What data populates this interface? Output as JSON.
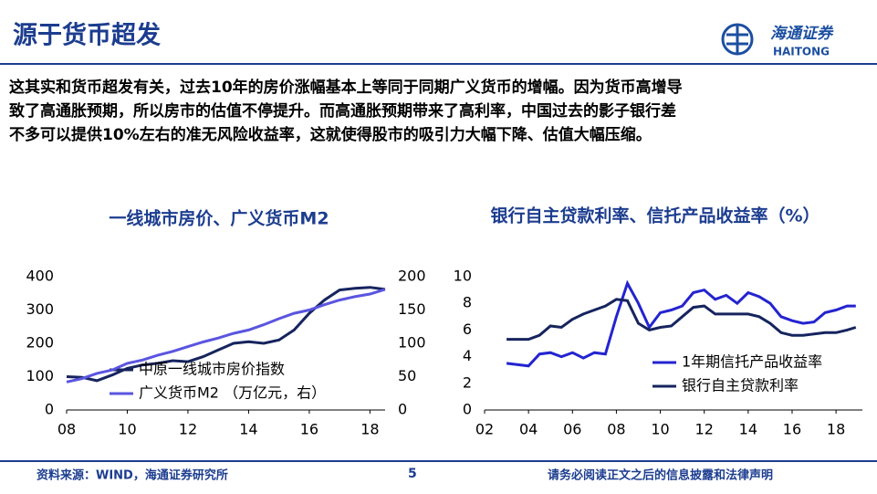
{
  "header": {
    "title": "源于货币超发",
    "logo_text": "海通证券",
    "logo_sub": "HAITONG"
  },
  "body_lines": [
    "这其实和货币超发有关，过去10年的房价涨幅基本上等同于同期广义货币的增幅。因为货币高增导",
    "致了高通胀预期，所以房市的估值不停提升。而高通胀预期带来了高利率，中国过去的影子银行差",
    "不多可以提供10%左右的准无风险收益率，这就使得股市的吸引力大幅下降、估值大幅压缩。"
  ],
  "chart_data": [
    {
      "type": "line",
      "title": "一线城市房价、广义货币M2",
      "x": [
        2008,
        2008.5,
        2009,
        2009.5,
        2010,
        2010.5,
        2011,
        2011.5,
        2012,
        2012.5,
        2013,
        2013.5,
        2014,
        2014.5,
        2015,
        2015.5,
        2016,
        2016.5,
        2017,
        2017.5,
        2018,
        2018.5
      ],
      "xlim": [
        2008,
        2018.5
      ],
      "xticks": [
        {
          "value": 2008,
          "label": "08"
        },
        {
          "value": 2010,
          "label": "10"
        },
        {
          "value": 2012,
          "label": "12"
        },
        {
          "value": 2014,
          "label": "14"
        },
        {
          "value": 2016,
          "label": "16"
        },
        {
          "value": 2018,
          "label": "18"
        }
      ],
      "ylim": [
        0,
        400
      ],
      "yticks": [
        0,
        100,
        200,
        300,
        400
      ],
      "y2lim": [
        0,
        200
      ],
      "y2ticks": [
        0,
        50,
        100,
        150,
        200
      ],
      "series": [
        {
          "name": "中原一线城市房价指数",
          "color": "#16245e",
          "values": [
            100,
            98,
            88,
            105,
            125,
            135,
            140,
            148,
            145,
            160,
            180,
            200,
            205,
            200,
            210,
            240,
            290,
            330,
            360,
            365,
            368,
            362
          ]
        },
        {
          "name": "广义货币M2 （万亿元，右）",
          "color": "#5a55e0",
          "axis": "y2",
          "values": [
            42,
            47,
            55,
            60,
            70,
            75,
            82,
            88,
            95,
            102,
            108,
            115,
            120,
            128,
            137,
            145,
            150,
            158,
            165,
            170,
            174,
            181
          ]
        }
      ]
    },
    {
      "type": "line",
      "title": "银行自主贷款利率、信托产品收益率（%）",
      "x": [
        2003,
        2004,
        2004.5,
        2005,
        2005.5,
        2006,
        2006.5,
        2007,
        2007.5,
        2008,
        2008.5,
        2009,
        2009.5,
        2010,
        2010.5,
        2011,
        2011.5,
        2012,
        2012.5,
        2013,
        2013.5,
        2014,
        2014.5,
        2015,
        2015.5,
        2016,
        2016.5,
        2017,
        2017.5,
        2018,
        2018.5,
        2018.9
      ],
      "xlim": [
        2002,
        2019.2
      ],
      "xticks": [
        {
          "value": 2002,
          "label": "02"
        },
        {
          "value": 2004,
          "label": "04"
        },
        {
          "value": 2006,
          "label": "06"
        },
        {
          "value": 2008,
          "label": "08"
        },
        {
          "value": 2010,
          "label": "10"
        },
        {
          "value": 2012,
          "label": "12"
        },
        {
          "value": 2014,
          "label": "14"
        },
        {
          "value": 2016,
          "label": "16"
        },
        {
          "value": 2018,
          "label": "18"
        }
      ],
      "ylim": [
        0,
        10
      ],
      "yticks": [
        0,
        2,
        4,
        6,
        8,
        10
      ],
      "series": [
        {
          "name": "1年期信托产品收益率",
          "color": "#2424d0",
          "values": [
            3.5,
            3.3,
            4.2,
            4.3,
            4.0,
            4.3,
            3.9,
            4.3,
            4.2,
            7.0,
            9.5,
            8.0,
            6.2,
            7.3,
            7.5,
            7.8,
            8.8,
            9.0,
            8.3,
            8.6,
            8.0,
            8.8,
            8.5,
            8.0,
            7.0,
            6.7,
            6.5,
            6.6,
            7.3,
            7.5,
            7.8,
            7.8
          ]
        },
        {
          "name": "银行自主贷款利率",
          "color": "#16245e",
          "values": [
            5.3,
            5.3,
            5.6,
            6.3,
            6.2,
            6.8,
            7.2,
            7.5,
            7.8,
            8.3,
            8.2,
            6.5,
            6.0,
            6.2,
            6.3,
            7.0,
            7.7,
            7.8,
            7.2,
            7.2,
            7.2,
            7.2,
            7.0,
            6.5,
            5.8,
            5.6,
            5.6,
            5.7,
            5.8,
            5.8,
            6.0,
            6.2
          ]
        }
      ]
    }
  ],
  "footer": {
    "source": "资料来源：WIND，海通证券研究所",
    "page": "5",
    "disclaimer": "请务必阅读正文之后的信息披露和法律声明"
  }
}
